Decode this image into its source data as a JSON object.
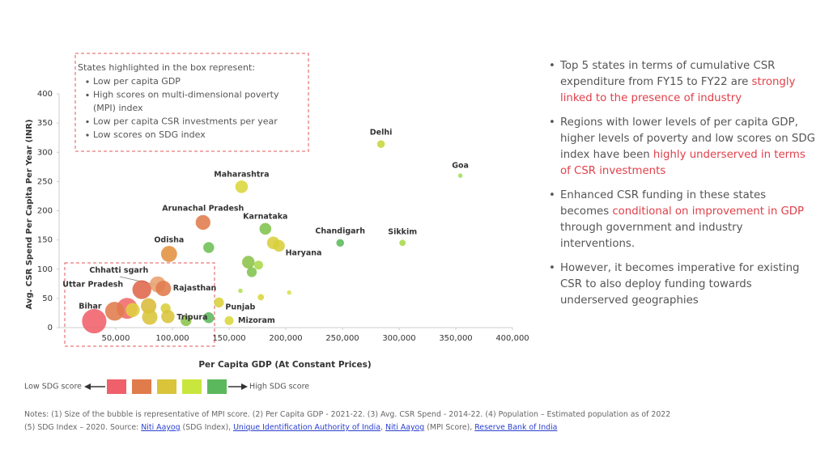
{
  "chart_data": {
    "type": "scatter",
    "xlabel": "Per Capita GDP (At Constant Prices)",
    "ylabel": "Avg. CSR Spend Per Capita Per Year (INR)",
    "xlim": [
      0,
      400000
    ],
    "ylim": [
      0,
      400
    ],
    "xticks": [
      {
        "value": 50000,
        "label": "50,000"
      },
      {
        "value": 100000,
        "label": "100,000"
      },
      {
        "value": 150000,
        "label": "150,000"
      },
      {
        "value": 200000,
        "label": "200,000"
      },
      {
        "value": 250000,
        "label": "250,000"
      },
      {
        "value": 300000,
        "label": "300,000"
      },
      {
        "value": 350000,
        "label": "350,000"
      },
      {
        "value": 400000,
        "label": "400,000"
      }
    ],
    "yticks": [
      0,
      50,
      100,
      150,
      200,
      250,
      300,
      350,
      400
    ],
    "labels": [
      "Delhi",
      "Goa",
      "Maharashtra",
      "Arunachal Pradesh",
      "Karnataka",
      "Odisha",
      null,
      "Haryana",
      null,
      "Chandigarh",
      "Sikkim",
      null,
      null,
      null,
      "Chhatti sgarh",
      "Rajasthan",
      "Uttar Pradesh",
      "Bihar",
      null,
      null,
      null,
      null,
      null,
      null,
      "Tripura",
      null,
      null,
      "Punjab",
      "Mizoram",
      null,
      null,
      null
    ],
    "x": [
      284000,
      354000,
      161000,
      127000,
      182000,
      97000,
      132000,
      194000,
      189000,
      248000,
      303000,
      167000,
      176000,
      170000,
      87000,
      92000,
      73000,
      31000,
      60000,
      49000,
      79000,
      65000,
      94000,
      80000,
      96000,
      112000,
      132000,
      141000,
      150000,
      160000,
      203000,
      178000
    ],
    "y": [
      314,
      260,
      241,
      180,
      169,
      126,
      137,
      140,
      145,
      145,
      145,
      112,
      107,
      95,
      74,
      67,
      65,
      11,
      33,
      28,
      37,
      30,
      33,
      18,
      19,
      12,
      17,
      43,
      12,
      63,
      60,
      52
    ],
    "sizes": [
      3,
      1,
      8,
      11,
      7,
      13,
      6,
      7,
      8,
      3,
      2,
      8,
      4,
      5,
      13,
      12,
      18,
      30,
      22,
      18,
      12,
      10,
      5,
      12,
      9,
      6,
      6,
      5,
      4,
      1,
      1,
      2
    ],
    "colors": [
      "#c9d53c",
      "#9ee05a",
      "#d8d73a",
      "#e07b4c",
      "#7fc34d",
      "#e3913f",
      "#6dbf55",
      "#d8cf3a",
      "#d8cf3a",
      "#5cb85c",
      "#a8d84a",
      "#8bc34a",
      "#a8d84a",
      "#7fc34d",
      "#e8a070",
      "#e07b4c",
      "#e0664c",
      "#f0606a",
      "#f06a6a",
      "#e07b4c",
      "#d9b93a",
      "#e0d040",
      "#d8cf3a",
      "#d9c43a",
      "#d9c43a",
      "#8bc34a",
      "#5cb85c",
      "#d9cf3a",
      "#d8d73a",
      "#b0e050",
      "#d8e050",
      "#d8d73a"
    ],
    "box_note": {
      "title": "States highlighted in the box represent:",
      "items": [
        "Low per capita GDP",
        "High scores on multi-dimensional poverty",
        "(MPI) index",
        "Low per capita CSR investments per year",
        "Low scores on SDG index"
      ]
    },
    "sdg_legend": {
      "low": "Low SDG score",
      "high": "High SDG score",
      "colors": [
        "#f0606a",
        "#e07b4c",
        "#d9c43a",
        "#c8e63c",
        "#5cb85c"
      ]
    }
  },
  "bullets": [
    [
      {
        "text": "Top 5 states in terms of cumulative CSR expenditure from FY15 to FY22 are ",
        "highlight": false
      },
      {
        "text": "strongly linked to the presence of industry",
        "highlight": true
      }
    ],
    [
      {
        "text": "Regions with lower levels of per capita GDP, higher levels of poverty and low scores on SDG index have been ",
        "highlight": false
      },
      {
        "text": "highly underserved in terms of CSR investments",
        "highlight": true
      }
    ],
    [
      {
        "text": "Enhanced CSR funding in these states becomes ",
        "highlight": false
      },
      {
        "text": "conditional on improvement in GDP",
        "highlight": true
      },
      {
        "text": " through government and industry interventions.",
        "highlight": false
      }
    ],
    [
      {
        "text": "However, it becomes imperative for existing CSR to also deploy funding towards underserved geographies",
        "highlight": false
      }
    ]
  ],
  "notes": [
    [
      {
        "text": "Notes: (1) Size of the bubble is representative of MPI score. (2) Per Capita GDP - 2021-22. (3) Avg. CSR Spend - 2014-22. (4) Population – Estimated population as of 2022",
        "link": false
      }
    ],
    [
      {
        "text": "(5) SDG Index – 2020. Source: ",
        "link": false
      },
      {
        "text": "Niti Aayog",
        "link": true
      },
      {
        "text": " (SDG Index), ",
        "link": false
      },
      {
        "text": "Unique Identification Authority of India",
        "link": true
      },
      {
        "text": ", ",
        "link": false
      },
      {
        "text": "Niti Aayog",
        "link": true
      },
      {
        "text": " (MPI Score), ",
        "link": false
      },
      {
        "text": "Reserve Bank of India",
        "link": true
      }
    ]
  ]
}
